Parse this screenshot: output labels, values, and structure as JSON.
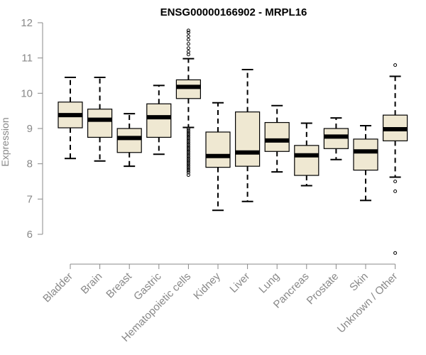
{
  "colors": {
    "box_fill": "#efe8d2",
    "box_stroke": "#000000",
    "axis": "#888888",
    "title": "#000000"
  },
  "chart_data": {
    "type": "boxplot",
    "title": "ENSG00000166902 - MRPL16",
    "xlabel": "",
    "ylabel": "Expression",
    "ylim": [
      5.3,
      12.2
    ],
    "yticks": [
      6,
      7,
      8,
      9,
      10,
      11,
      12
    ],
    "grid": false,
    "categories": [
      "Bladder",
      "Brain",
      "Breast",
      "Gastric",
      "Hematopoietic cells",
      "Kidney",
      "Liver",
      "Lung",
      "Pancreas",
      "Prostate",
      "Skin",
      "Unknown / Other"
    ],
    "boxes": [
      {
        "category": "Bladder",
        "whisker_low": 8.15,
        "q1": 9.02,
        "median": 9.38,
        "q3": 9.75,
        "whisker_high": 10.45,
        "outliers": []
      },
      {
        "category": "Brain",
        "whisker_low": 8.08,
        "q1": 8.75,
        "median": 9.25,
        "q3": 9.55,
        "whisker_high": 10.45,
        "outliers": []
      },
      {
        "category": "Breast",
        "whisker_low": 7.93,
        "q1": 8.32,
        "median": 8.73,
        "q3": 9.0,
        "whisker_high": 9.42,
        "outliers": []
      },
      {
        "category": "Gastric",
        "whisker_low": 8.27,
        "q1": 8.75,
        "median": 9.32,
        "q3": 9.7,
        "whisker_high": 10.22,
        "outliers": []
      },
      {
        "category": "Hematopoietic cells",
        "whisker_low": 9.03,
        "q1": 9.85,
        "median": 10.18,
        "q3": 10.38,
        "whisker_high": 10.98,
        "outliers": [
          11.78,
          11.72,
          11.62,
          11.52,
          11.4,
          11.28,
          11.18,
          11.1,
          9.0,
          8.95,
          8.9,
          8.85,
          8.8,
          8.75,
          8.7,
          8.65,
          8.6,
          8.55,
          8.5,
          8.45,
          8.4,
          8.35,
          8.3,
          8.25,
          8.2,
          8.15,
          8.1,
          8.05,
          8.0,
          7.95,
          7.9,
          7.85,
          7.8,
          7.75,
          7.68
        ]
      },
      {
        "category": "Kidney",
        "whisker_low": 6.68,
        "q1": 7.9,
        "median": 8.22,
        "q3": 8.9,
        "whisker_high": 9.73,
        "outliers": []
      },
      {
        "category": "Liver",
        "whisker_low": 6.93,
        "q1": 7.93,
        "median": 8.32,
        "q3": 9.47,
        "whisker_high": 10.67,
        "outliers": []
      },
      {
        "category": "Lung",
        "whisker_low": 7.77,
        "q1": 8.35,
        "median": 8.66,
        "q3": 9.17,
        "whisker_high": 9.65,
        "outliers": []
      },
      {
        "category": "Pancreas",
        "whisker_low": 7.38,
        "q1": 7.67,
        "median": 8.24,
        "q3": 8.52,
        "whisker_high": 9.15,
        "outliers": []
      },
      {
        "category": "Prostate",
        "whisker_low": 8.12,
        "q1": 8.43,
        "median": 8.77,
        "q3": 9.0,
        "whisker_high": 9.3,
        "outliers": []
      },
      {
        "category": "Skin",
        "whisker_low": 6.96,
        "q1": 7.82,
        "median": 8.35,
        "q3": 8.7,
        "whisker_high": 9.08,
        "outliers": []
      },
      {
        "category": "Unknown / Other",
        "whisker_low": 7.62,
        "q1": 8.65,
        "median": 8.98,
        "q3": 9.38,
        "whisker_high": 10.48,
        "outliers": [
          10.8,
          7.5,
          7.22,
          5.47
        ]
      }
    ]
  }
}
